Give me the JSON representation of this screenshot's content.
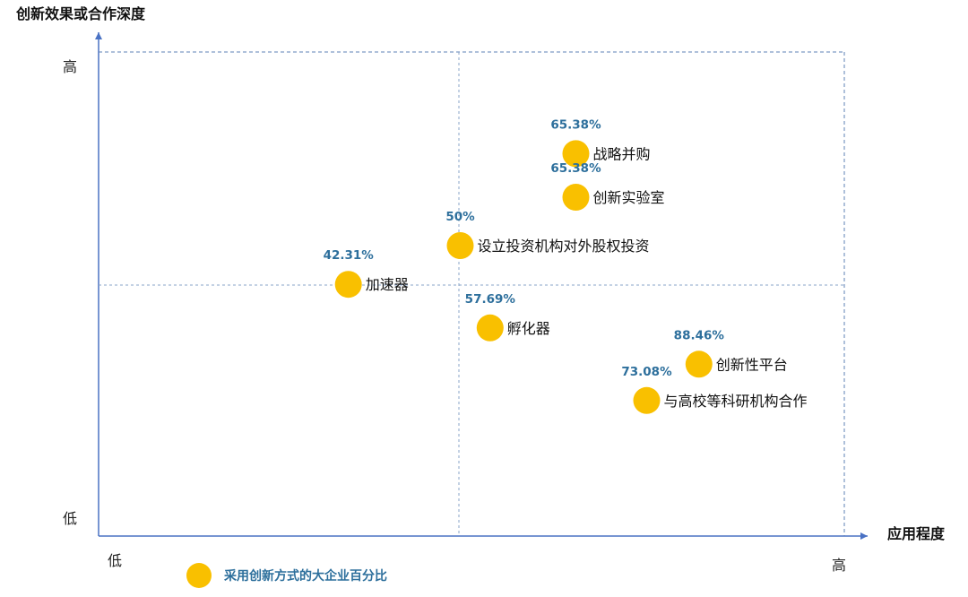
{
  "chart_data": {
    "type": "scatter",
    "title": "",
    "xlabel": "应用程度",
    "ylabel": "创新效果或合作深度",
    "x_ticks": [
      "低",
      "高"
    ],
    "y_ticks": [
      "高",
      "低"
    ],
    "xlim": [
      0,
      100
    ],
    "ylim": [
      0,
      100
    ],
    "grid": false,
    "legend": {
      "label": "采用创新方式的大企业百分比",
      "position": "bottom-left"
    },
    "colors": {
      "marker": "#f9c000",
      "label": "#2d6f9c",
      "axis": "#4a72c4",
      "guide": "#5e80b5"
    },
    "points": [
      {
        "name": "战略并购",
        "value": "65.38%",
        "x": 64,
        "y": 79
      },
      {
        "name": "创新实验室",
        "value": "65.38%",
        "x": 64,
        "y": 70
      },
      {
        "name": "设立投资机构对外股权投资",
        "value": "50%",
        "x": 48.5,
        "y": 60
      },
      {
        "name": "加速器",
        "value": "42.31%",
        "x": 33.5,
        "y": 52
      },
      {
        "name": "孵化器",
        "value": "57.69%",
        "x": 52.5,
        "y": 43
      },
      {
        "name": "创新性平台",
        "value": "88.46%",
        "x": 80.5,
        "y": 35.5
      },
      {
        "name": "与高校等科研机构合作",
        "value": "73.08%",
        "x": 73.5,
        "y": 28
      }
    ]
  }
}
